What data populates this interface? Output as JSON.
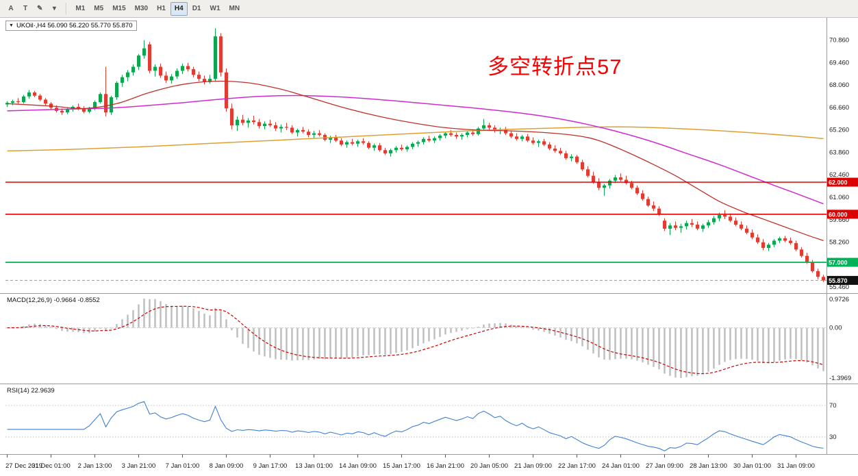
{
  "toolbar": {
    "icon_buttons": [
      {
        "name": "annotation-tool-button",
        "label": "A"
      },
      {
        "name": "text-tool-button",
        "label": "T"
      },
      {
        "name": "draw-tool-button",
        "label": "✎"
      },
      {
        "name": "draw-tool-dropdown-button",
        "label": "▾"
      }
    ],
    "timeframes": [
      "M1",
      "M5",
      "M15",
      "M30",
      "H1",
      "H4",
      "D1",
      "W1",
      "MN"
    ],
    "active_timeframe": "H4"
  },
  "chart": {
    "collapse_icon": "▼",
    "symbol_label": "UKOil·,H4 56.090 56.220 55.770 55.870",
    "annotation": {
      "text": "多空转折点57",
      "color": "#fd0002"
    },
    "price_axis_labels": [
      "70.860",
      "69.460",
      "68.060",
      "66.660",
      "65.260",
      "63.860",
      "62.460",
      "61.060",
      "59.660",
      "58.260",
      "56.860",
      "55.460"
    ],
    "hlines": [
      {
        "price": 62.0,
        "label": "62.000",
        "color": "#dd0000",
        "width": 1.6
      },
      {
        "price": 60.0,
        "label": "60.000",
        "color": "#dd0000",
        "width": 1.6
      },
      {
        "price": 57.0,
        "label": "57.000",
        "color": "#00b257",
        "width": 1.8
      }
    ],
    "current_price": {
      "value": 55.87,
      "label": "55.870"
    },
    "time_axis_labels": [
      "27 Dec 2019",
      "31 Dec 01:00",
      "2 Jan 13:00",
      "3 Jan 21:00",
      "7 Jan 01:00",
      "8 Jan 09:00",
      "9 Jan 17:00",
      "13 Jan 01:00",
      "14 Jan 09:00",
      "15 Jan 17:00",
      "16 Jan 21:00",
      "20 Jan 05:00",
      "21 Jan 09:00",
      "22 Jan 17:00",
      "24 Jan 01:00",
      "27 Jan 09:00",
      "28 Jan 13:00",
      "30 Jan 01:00",
      "31 Jan 09:00"
    ]
  },
  "indicators": {
    "macd": {
      "label": "MACD(12,26,9) -0.9664 -0.8552",
      "fast": 12,
      "slow": 26,
      "signal": 9,
      "axis": [
        "0.9726",
        "0.00",
        "-1.3969"
      ]
    },
    "rsi": {
      "label": "RSI(14) 22.9639",
      "period": 14,
      "levels": [
        "70",
        "30"
      ]
    }
  },
  "colors": {
    "bull": "#0ca64f",
    "bear": "#e23b32",
    "macd_hist": "#bdbdbd",
    "macd_signal": "#cc0000",
    "rsi_line": "#3f7fd4",
    "axis_line": "#9a9a9a"
  },
  "chart_data": {
    "type": "candlestick",
    "symbol": "UKOil",
    "timeframe": "H4",
    "ohlc_display": {
      "open": "56.090",
      "high": "56.220",
      "low": "55.770",
      "close": "55.870"
    },
    "y_range": [
      55.2,
      72.1
    ],
    "ohlc": [
      [
        66.85,
        67.05,
        66.7,
        66.95
      ],
      [
        66.95,
        67.15,
        66.8,
        67.05
      ],
      [
        67.05,
        67.25,
        66.9,
        67.0
      ],
      [
        67.0,
        67.45,
        66.9,
        67.35
      ],
      [
        67.35,
        67.75,
        67.2,
        67.6
      ],
      [
        67.6,
        67.7,
        67.3,
        67.4
      ],
      [
        67.4,
        67.5,
        67.05,
        67.15
      ],
      [
        67.15,
        67.25,
        66.8,
        66.9
      ],
      [
        66.9,
        67.0,
        66.55,
        66.65
      ],
      [
        66.65,
        66.8,
        66.35,
        66.45
      ],
      [
        66.45,
        66.6,
        66.2,
        66.35
      ],
      [
        66.35,
        66.65,
        66.25,
        66.55
      ],
      [
        66.55,
        66.8,
        66.4,
        66.7
      ],
      [
        66.7,
        66.9,
        66.5,
        66.6
      ],
      [
        66.6,
        66.75,
        66.3,
        66.4
      ],
      [
        66.4,
        66.7,
        66.3,
        66.6
      ],
      [
        66.6,
        67.1,
        66.5,
        67.0
      ],
      [
        67.0,
        67.6,
        66.9,
        67.5
      ],
      [
        67.5,
        69.2,
        66.1,
        66.35
      ],
      [
        66.35,
        67.4,
        66.2,
        67.3
      ],
      [
        67.3,
        68.3,
        67.15,
        68.2
      ],
      [
        68.2,
        68.7,
        67.95,
        68.55
      ],
      [
        68.55,
        69.0,
        68.3,
        68.85
      ],
      [
        68.85,
        69.35,
        68.65,
        69.2
      ],
      [
        69.2,
        70.0,
        69.0,
        69.9
      ],
      [
        69.9,
        70.86,
        69.7,
        70.35
      ],
      [
        70.6,
        70.75,
        68.8,
        68.95
      ],
      [
        68.95,
        69.35,
        68.6,
        69.2
      ],
      [
        69.2,
        69.4,
        68.5,
        68.65
      ],
      [
        68.65,
        68.9,
        68.2,
        68.35
      ],
      [
        68.35,
        68.75,
        68.15,
        68.6
      ],
      [
        68.6,
        69.1,
        68.45,
        68.95
      ],
      [
        68.95,
        69.4,
        68.75,
        69.25
      ],
      [
        69.25,
        69.45,
        68.9,
        69.05
      ],
      [
        69.05,
        69.2,
        68.55,
        68.7
      ],
      [
        68.7,
        68.9,
        68.3,
        68.45
      ],
      [
        68.45,
        68.65,
        68.1,
        68.25
      ],
      [
        68.25,
        68.7,
        68.15,
        68.45
      ],
      [
        68.45,
        71.6,
        68.3,
        71.1
      ],
      [
        71.1,
        71.3,
        68.6,
        68.85
      ],
      [
        68.85,
        69.1,
        66.4,
        66.6
      ],
      [
        66.6,
        66.9,
        65.3,
        65.55
      ],
      [
        65.55,
        66.1,
        65.2,
        65.9
      ],
      [
        65.9,
        66.2,
        65.55,
        65.7
      ],
      [
        65.7,
        66.0,
        65.4,
        65.85
      ],
      [
        65.85,
        66.15,
        65.6,
        65.75
      ],
      [
        65.75,
        65.95,
        65.35,
        65.5
      ],
      [
        65.5,
        65.8,
        65.3,
        65.65
      ],
      [
        65.65,
        65.9,
        65.45,
        65.55
      ],
      [
        65.55,
        65.75,
        65.2,
        65.35
      ],
      [
        65.35,
        65.6,
        65.1,
        65.45
      ],
      [
        65.45,
        65.7,
        65.25,
        65.4
      ],
      [
        65.4,
        65.55,
        65.0,
        65.1
      ],
      [
        65.1,
        65.35,
        64.85,
        65.25
      ],
      [
        65.25,
        65.45,
        65.05,
        65.15
      ],
      [
        65.15,
        65.3,
        64.8,
        64.95
      ],
      [
        64.95,
        65.2,
        64.75,
        65.05
      ],
      [
        65.05,
        65.25,
        64.85,
        64.95
      ],
      [
        64.95,
        65.05,
        64.55,
        64.65
      ],
      [
        64.65,
        64.9,
        64.45,
        64.8
      ],
      [
        64.8,
        64.95,
        64.5,
        64.6
      ],
      [
        64.6,
        64.75,
        64.25,
        64.35
      ],
      [
        64.35,
        64.6,
        64.15,
        64.5
      ],
      [
        64.5,
        64.7,
        64.3,
        64.4
      ],
      [
        64.4,
        64.65,
        64.2,
        64.55
      ],
      [
        64.55,
        64.75,
        64.35,
        64.45
      ],
      [
        64.45,
        64.55,
        64.05,
        64.15
      ],
      [
        64.15,
        64.4,
        63.95,
        64.3
      ],
      [
        64.3,
        64.45,
        63.9,
        64.0
      ],
      [
        64.0,
        64.15,
        63.7,
        63.8
      ],
      [
        63.8,
        64.1,
        63.6,
        64.0
      ],
      [
        64.0,
        64.25,
        63.85,
        64.15
      ],
      [
        64.15,
        64.35,
        63.95,
        64.05
      ],
      [
        64.05,
        64.3,
        63.9,
        64.2
      ],
      [
        64.2,
        64.5,
        64.05,
        64.4
      ],
      [
        64.4,
        64.6,
        64.2,
        64.5
      ],
      [
        64.5,
        64.8,
        64.35,
        64.7
      ],
      [
        64.7,
        64.9,
        64.5,
        64.6
      ],
      [
        64.6,
        64.85,
        64.45,
        64.75
      ],
      [
        64.75,
        65.0,
        64.6,
        64.9
      ],
      [
        64.9,
        65.15,
        64.75,
        65.05
      ],
      [
        65.05,
        65.25,
        64.85,
        64.95
      ],
      [
        64.95,
        65.1,
        64.7,
        64.85
      ],
      [
        64.85,
        65.05,
        64.65,
        64.95
      ],
      [
        64.95,
        65.2,
        64.8,
        65.1
      ],
      [
        65.1,
        65.3,
        64.9,
        65.0
      ],
      [
        65.0,
        65.45,
        64.9,
        65.35
      ],
      [
        65.35,
        65.95,
        65.25,
        65.55
      ],
      [
        65.55,
        65.7,
        65.25,
        65.4
      ],
      [
        65.4,
        65.55,
        65.1,
        65.2
      ],
      [
        65.2,
        65.4,
        65.0,
        65.3
      ],
      [
        65.3,
        65.45,
        64.95,
        65.05
      ],
      [
        65.05,
        65.2,
        64.75,
        64.85
      ],
      [
        64.85,
        65.05,
        64.6,
        64.7
      ],
      [
        64.7,
        64.95,
        64.55,
        64.85
      ],
      [
        64.85,
        65.0,
        64.5,
        64.6
      ],
      [
        64.6,
        64.8,
        64.35,
        64.45
      ],
      [
        64.45,
        64.65,
        64.2,
        64.55
      ],
      [
        64.55,
        64.7,
        64.25,
        64.35
      ],
      [
        64.35,
        64.5,
        64.0,
        64.1
      ],
      [
        64.1,
        64.3,
        63.85,
        63.95
      ],
      [
        63.95,
        64.15,
        63.7,
        63.8
      ],
      [
        63.8,
        63.95,
        63.4,
        63.5
      ],
      [
        63.5,
        63.75,
        63.3,
        63.6
      ],
      [
        63.6,
        63.7,
        63.15,
        63.25
      ],
      [
        63.25,
        63.4,
        62.7,
        62.8
      ],
      [
        62.8,
        63.0,
        62.3,
        62.4
      ],
      [
        62.4,
        62.65,
        61.9,
        62.0
      ],
      [
        62.0,
        62.25,
        61.5,
        61.65
      ],
      [
        61.65,
        61.9,
        61.15,
        61.8
      ],
      [
        61.8,
        62.2,
        61.6,
        62.1
      ],
      [
        62.1,
        62.45,
        61.95,
        62.3
      ],
      [
        62.3,
        62.55,
        62.05,
        62.15
      ],
      [
        62.15,
        62.4,
        61.85,
        61.95
      ],
      [
        61.95,
        62.1,
        61.55,
        61.65
      ],
      [
        61.65,
        61.8,
        61.2,
        61.3
      ],
      [
        61.3,
        61.5,
        60.85,
        60.95
      ],
      [
        60.95,
        61.1,
        60.45,
        60.55
      ],
      [
        60.55,
        60.8,
        60.2,
        60.35
      ],
      [
        60.35,
        60.5,
        59.9,
        60.0
      ],
      [
        59.6,
        59.75,
        58.95,
        59.1
      ],
      [
        59.1,
        59.45,
        58.7,
        59.3
      ],
      [
        59.3,
        59.55,
        59.0,
        59.15
      ],
      [
        59.15,
        59.4,
        58.85,
        59.25
      ],
      [
        59.25,
        59.6,
        59.05,
        59.45
      ],
      [
        59.45,
        59.7,
        59.2,
        59.35
      ],
      [
        59.35,
        59.55,
        59.0,
        59.1
      ],
      [
        59.1,
        59.4,
        58.9,
        59.3
      ],
      [
        59.3,
        59.65,
        59.15,
        59.5
      ],
      [
        59.5,
        59.9,
        59.35,
        59.75
      ],
      [
        59.75,
        60.1,
        59.55,
        59.95
      ],
      [
        59.95,
        60.25,
        59.7,
        59.85
      ],
      [
        59.85,
        60.05,
        59.5,
        59.6
      ],
      [
        59.6,
        59.8,
        59.25,
        59.35
      ],
      [
        59.35,
        59.55,
        59.0,
        59.1
      ],
      [
        59.1,
        59.3,
        58.75,
        58.85
      ],
      [
        58.85,
        59.05,
        58.45,
        58.55
      ],
      [
        58.55,
        58.75,
        58.15,
        58.25
      ],
      [
        58.25,
        58.45,
        57.75,
        57.9
      ],
      [
        57.9,
        58.2,
        57.7,
        58.1
      ],
      [
        58.1,
        58.45,
        57.95,
        58.35
      ],
      [
        58.35,
        58.6,
        58.2,
        58.5
      ],
      [
        58.5,
        58.65,
        58.25,
        58.35
      ],
      [
        58.35,
        58.55,
        58.1,
        58.2
      ],
      [
        58.2,
        58.35,
        57.7,
        57.8
      ],
      [
        57.8,
        57.95,
        57.3,
        57.4
      ],
      [
        57.4,
        57.6,
        56.9,
        57.0
      ],
      [
        57.0,
        57.15,
        56.35,
        56.45
      ],
      [
        56.45,
        56.6,
        55.95,
        56.1
      ],
      [
        56.09,
        56.22,
        55.77,
        55.87
      ]
    ],
    "ma_lines": [
      {
        "name": "ma-orange",
        "color": "#e0a030",
        "width": 1.5,
        "points": [
          [
            0,
            63.95
          ],
          [
            12,
            64.05
          ],
          [
            24,
            64.2
          ],
          [
            36,
            64.4
          ],
          [
            48,
            64.6
          ],
          [
            60,
            64.8
          ],
          [
            72,
            65.0
          ],
          [
            84,
            65.2
          ],
          [
            94,
            65.32
          ],
          [
            104,
            65.42
          ],
          [
            112,
            65.45
          ],
          [
            120,
            65.38
          ],
          [
            128,
            65.25
          ],
          [
            136,
            65.08
          ],
          [
            143,
            64.9
          ],
          [
            149,
            64.72
          ]
        ]
      },
      {
        "name": "ma-magenta",
        "color": "#cf2bcf",
        "width": 1.5,
        "points": [
          [
            0,
            66.45
          ],
          [
            10,
            66.55
          ],
          [
            20,
            66.65
          ],
          [
            30,
            66.9
          ],
          [
            38,
            67.15
          ],
          [
            46,
            67.35
          ],
          [
            54,
            67.4
          ],
          [
            62,
            67.3
          ],
          [
            70,
            67.1
          ],
          [
            78,
            66.85
          ],
          [
            86,
            66.6
          ],
          [
            94,
            66.3
          ],
          [
            100,
            66.0
          ],
          [
            106,
            65.6
          ],
          [
            112,
            65.1
          ],
          [
            118,
            64.5
          ],
          [
            124,
            63.8
          ],
          [
            130,
            63.1
          ],
          [
            135,
            62.45
          ],
          [
            140,
            61.8
          ],
          [
            144,
            61.3
          ],
          [
            149,
            60.65
          ]
        ]
      },
      {
        "name": "ma-red",
        "color": "#c03028",
        "width": 1.3,
        "points": [
          [
            0,
            66.9
          ],
          [
            8,
            66.75
          ],
          [
            14,
            66.6
          ],
          [
            20,
            66.9
          ],
          [
            26,
            67.6
          ],
          [
            32,
            68.1
          ],
          [
            38,
            68.3
          ],
          [
            44,
            68.2
          ],
          [
            50,
            67.8
          ],
          [
            56,
            67.2
          ],
          [
            62,
            66.6
          ],
          [
            68,
            66.1
          ],
          [
            74,
            65.7
          ],
          [
            80,
            65.4
          ],
          [
            86,
            65.25
          ],
          [
            92,
            65.2
          ],
          [
            98,
            65.1
          ],
          [
            104,
            64.9
          ],
          [
            108,
            64.6
          ],
          [
            113,
            63.9
          ],
          [
            118,
            63.1
          ],
          [
            122,
            62.4
          ],
          [
            126,
            61.6
          ],
          [
            130,
            60.8
          ],
          [
            134,
            60.2
          ],
          [
            138,
            59.7
          ],
          [
            142,
            59.2
          ],
          [
            146,
            58.7
          ],
          [
            149,
            58.35
          ]
        ]
      }
    ]
  }
}
